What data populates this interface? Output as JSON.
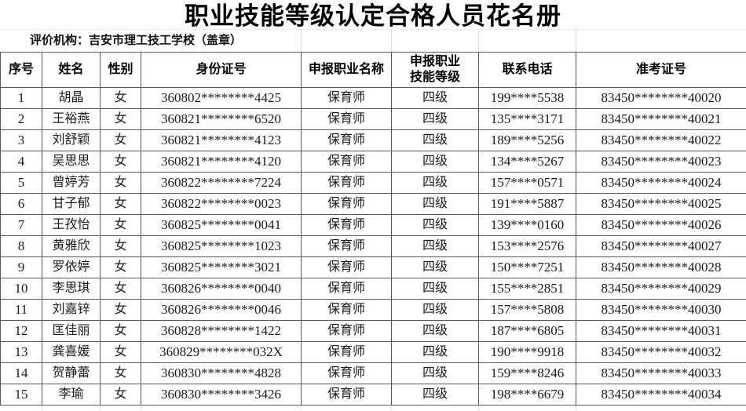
{
  "title": "职业技能等级认定合格人员花名册",
  "info": {
    "evaluating_org": "评价机构：吉安市理工技工学校（盖章）"
  },
  "table": {
    "headers": [
      "序号",
      "姓名",
      "性别",
      "身份证号",
      "申报职业名称",
      "申报职业\n技能等级",
      "联系电话",
      "准考证号"
    ],
    "column_keys": [
      "index",
      "name",
      "gender",
      "id-number",
      "occupation",
      "skill-level",
      "phone",
      "ticket-number"
    ],
    "rows": [
      [
        "1",
        "胡晶",
        "女",
        "360802********4425",
        "保育师",
        "四级",
        "199****5538",
        "83450********40020"
      ],
      [
        "2",
        "王裕燕",
        "女",
        "360821********6520",
        "保育师",
        "四级",
        "135****3171",
        "83450********40021"
      ],
      [
        "3",
        "刘舒颖",
        "女",
        "360821********4123",
        "保育师",
        "四级",
        "189****5256",
        "83450********40022"
      ],
      [
        "4",
        "吴思思",
        "女",
        "360821********4120",
        "保育师",
        "四级",
        "134****5267",
        "83450********40023"
      ],
      [
        "5",
        "曾婷芳",
        "女",
        "360822********7224",
        "保育师",
        "四级",
        "157****0571",
        "83450********40024"
      ],
      [
        "6",
        "甘子郁",
        "女",
        "360822********0023",
        "保育师",
        "四级",
        "191****5887",
        "83450********40025"
      ],
      [
        "7",
        "王孜怡",
        "女",
        "360825********0041",
        "保育师",
        "四级",
        "139****0160",
        "83450********40026"
      ],
      [
        "8",
        "黄雅欣",
        "女",
        "360825********1023",
        "保育师",
        "四级",
        "153****2576",
        "83450********40027"
      ],
      [
        "9",
        "罗依婷",
        "女",
        "360825********3021",
        "保育师",
        "四级",
        "150****7251",
        "83450********40028"
      ],
      [
        "10",
        "李思琪",
        "女",
        "360826********0040",
        "保育师",
        "四级",
        "155****2851",
        "83450********40029"
      ],
      [
        "11",
        "刘嘉锌",
        "女",
        "360826********0046",
        "保育师",
        "四级",
        "157****5808",
        "83450********40030"
      ],
      [
        "12",
        "匡佳丽",
        "女",
        "360828********1422",
        "保育师",
        "四级",
        "187****6805",
        "83450********40031"
      ],
      [
        "13",
        "龚喜媛",
        "女",
        "360829********032X",
        "保育师",
        "四级",
        "190****9918",
        "83450********40032"
      ],
      [
        "14",
        "贺静蕾",
        "女",
        "360830********4828",
        "保育师",
        "四级",
        "159****8246",
        "83450********40033"
      ],
      [
        "15",
        "李瑜",
        "女",
        "360830********3426",
        "保育师",
        "四级",
        "198****6679",
        "83450********40034"
      ]
    ]
  }
}
